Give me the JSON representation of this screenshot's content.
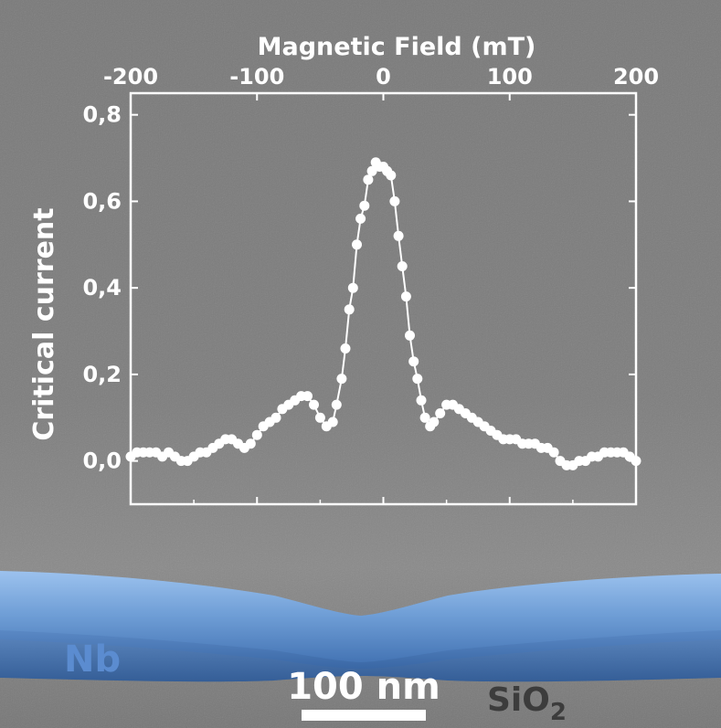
{
  "chart_data": {
    "type": "scatter",
    "xlabel": "Magnetic Field (mT)",
    "ylabel": "Critical current",
    "xlim": [
      -200,
      200
    ],
    "ylim": [
      -0.1,
      0.85
    ],
    "x_ticks": [
      -200,
      -100,
      0,
      100,
      200
    ],
    "x_tick_labels": [
      "-200",
      "-100",
      "0",
      "100",
      "200"
    ],
    "y_ticks": [
      0.0,
      0.2,
      0.4,
      0.6,
      0.8
    ],
    "y_tick_labels": [
      "0,0",
      "0,2",
      "0,4",
      "0,6",
      "0,8"
    ],
    "x_axis_position": "top",
    "grid": false,
    "series": [
      {
        "marker": "filled-circle",
        "color": "#ffffff",
        "x": [
          -200,
          -195,
          -190,
          -185,
          -180,
          -175,
          -170,
          -165,
          -160,
          -155,
          -150,
          -145,
          -140,
          -135,
          -130,
          -125,
          -120,
          -115,
          -110,
          -105,
          -100,
          -95,
          -90,
          -85,
          -80,
          -75,
          -70,
          -65,
          -60,
          -55,
          -50,
          -45,
          -40,
          -37,
          -33,
          -30,
          -27,
          -24,
          -21,
          -18,
          -15,
          -12,
          -9,
          -6,
          -3,
          0,
          3,
          6,
          9,
          12,
          15,
          18,
          21,
          24,
          27,
          30,
          33,
          37,
          40,
          45,
          50,
          55,
          60,
          65,
          70,
          75,
          80,
          85,
          90,
          95,
          100,
          105,
          110,
          115,
          120,
          125,
          130,
          135,
          140,
          145,
          150,
          155,
          160,
          165,
          170,
          175,
          180,
          185,
          190,
          195,
          200
        ],
        "y": [
          0.01,
          0.02,
          0.02,
          0.02,
          0.02,
          0.01,
          0.02,
          0.01,
          0.0,
          0.0,
          0.01,
          0.02,
          0.02,
          0.03,
          0.04,
          0.05,
          0.05,
          0.04,
          0.03,
          0.04,
          0.06,
          0.08,
          0.09,
          0.1,
          0.12,
          0.13,
          0.14,
          0.15,
          0.15,
          0.13,
          0.1,
          0.08,
          0.09,
          0.13,
          0.19,
          0.26,
          0.35,
          0.4,
          0.5,
          0.56,
          0.59,
          0.65,
          0.67,
          0.69,
          0.68,
          0.68,
          0.67,
          0.66,
          0.6,
          0.52,
          0.45,
          0.38,
          0.29,
          0.23,
          0.19,
          0.14,
          0.1,
          0.08,
          0.09,
          0.11,
          0.13,
          0.13,
          0.12,
          0.11,
          0.1,
          0.09,
          0.08,
          0.07,
          0.06,
          0.05,
          0.05,
          0.05,
          0.04,
          0.04,
          0.04,
          0.03,
          0.03,
          0.02,
          0.0,
          -0.01,
          -0.01,
          0.0,
          0.0,
          0.01,
          0.01,
          0.02,
          0.02,
          0.02,
          0.02,
          0.01,
          0.0
        ]
      }
    ]
  },
  "image_labels": {
    "material_top": "Nb",
    "material_bottom": "SiO",
    "material_bottom_subscript": "2",
    "scale_bar": "100 nm"
  }
}
